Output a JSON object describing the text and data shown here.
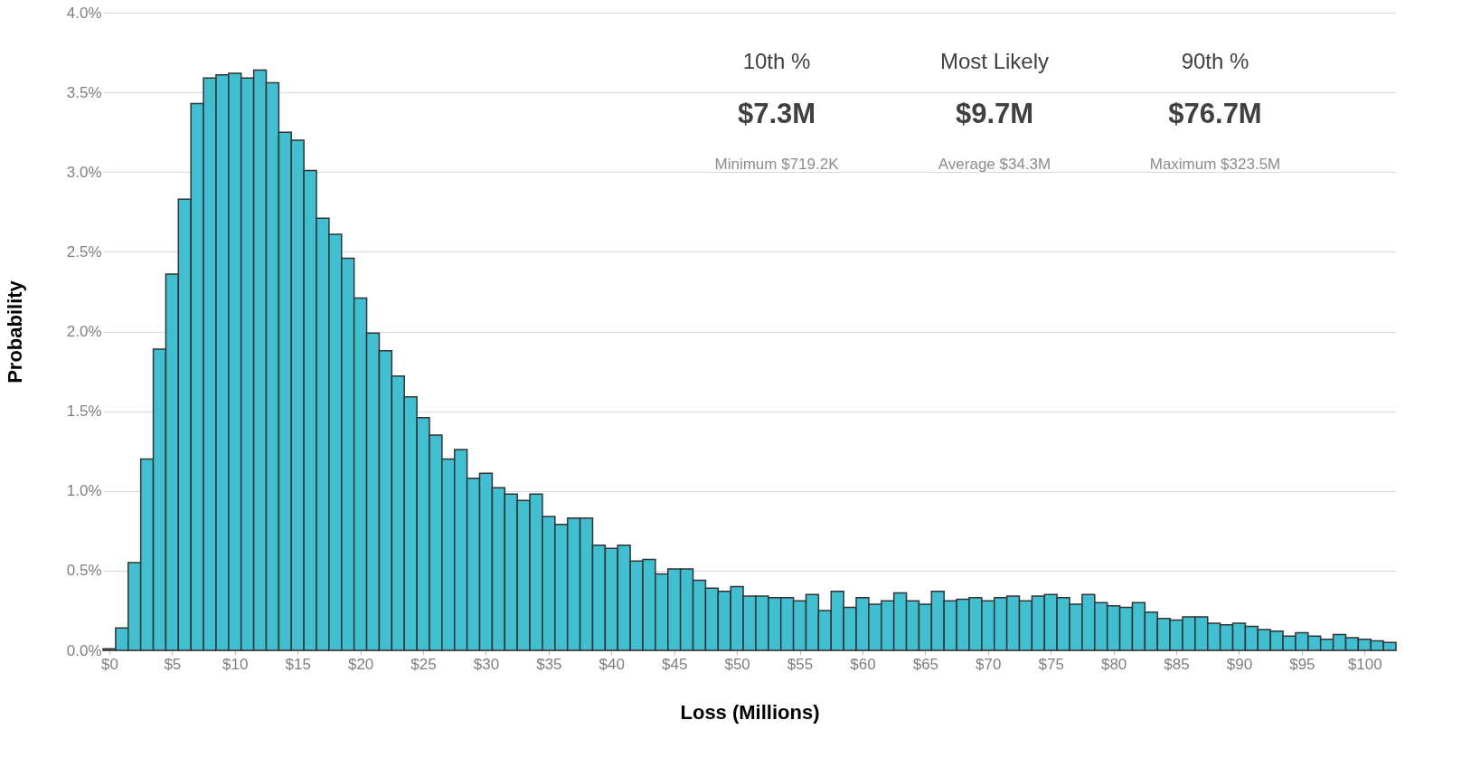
{
  "chart_data": {
    "type": "histogram",
    "xlabel": "Loss (Millions)",
    "ylabel": "Probability",
    "color": "#40bfd1",
    "bins": [
      -0.5,
      0.5,
      1.5,
      2.5,
      3.5,
      4.5,
      5.5,
      6.5,
      7.5,
      8.5,
      9.5,
      10.5,
      11.5,
      12.5,
      13.5,
      14.5,
      15.5,
      16.5,
      17.5,
      18.5,
      19.5,
      20.5,
      21.5,
      22.5,
      23.5,
      24.5,
      25.5,
      26.5,
      27.5,
      28.5,
      29.5,
      30.5,
      31.5,
      32.5,
      33.5,
      34.5,
      35.5,
      36.5,
      37.5,
      38.5,
      39.5,
      40.5,
      41.5,
      42.5,
      43.5,
      44.5,
      45.5,
      46.5,
      47.5,
      48.5,
      49.5,
      50.5,
      51.5,
      52.5,
      53.5,
      54.5,
      55.5,
      56.5,
      57.5,
      58.5,
      59.5,
      60.5,
      61.5,
      62.5,
      63.5,
      64.5,
      65.5,
      66.5,
      67.5,
      68.5,
      69.5,
      70.5,
      71.5,
      72.5,
      73.5,
      74.5,
      75.5,
      76.5,
      77.5,
      78.5,
      79.5,
      80.5,
      81.5,
      82.5,
      83.5,
      84.5,
      85.5,
      86.5,
      87.5,
      88.5,
      89.5,
      90.5,
      91.5,
      92.5,
      93.5,
      94.5,
      95.5,
      96.5,
      97.5,
      98.5,
      99.5,
      100.5,
      101.5,
      102.5
    ],
    "values": [
      0.01,
      0.14,
      0.55,
      1.2,
      1.89,
      2.36,
      2.83,
      3.43,
      3.59,
      3.61,
      3.62,
      3.59,
      3.64,
      3.56,
      3.25,
      3.2,
      3.01,
      2.71,
      2.61,
      2.46,
      2.21,
      1.99,
      1.88,
      1.72,
      1.59,
      1.46,
      1.35,
      1.2,
      1.26,
      1.08,
      1.11,
      1.02,
      0.98,
      0.94,
      0.98,
      0.84,
      0.79,
      0.83,
      0.83,
      0.66,
      0.64,
      0.66,
      0.56,
      0.57,
      0.48,
      0.51,
      0.51,
      0.44,
      0.39,
      0.37,
      0.4,
      0.34,
      0.34,
      0.33,
      0.33,
      0.31,
      0.35,
      0.25,
      0.37,
      0.27,
      0.33,
      0.29,
      0.31,
      0.36,
      0.31,
      0.29,
      0.37,
      0.31,
      0.32,
      0.33,
      0.31,
      0.33,
      0.34,
      0.31,
      0.34,
      0.35,
      0.33,
      0.29,
      0.35,
      0.3,
      0.28,
      0.27,
      0.3,
      0.24,
      0.2,
      0.19,
      0.21,
      0.21,
      0.17,
      0.16,
      0.17,
      0.15,
      0.13,
      0.12,
      0.09,
      0.11,
      0.09,
      0.07,
      0.1,
      0.08,
      0.07,
      0.06,
      0.05
    ],
    "xlim": [
      -0.5,
      102.5
    ],
    "xticks": [
      {
        "value": 0,
        "label": "$0"
      },
      {
        "value": 5,
        "label": "$5"
      },
      {
        "value": 10,
        "label": "$10"
      },
      {
        "value": 15,
        "label": "$15"
      },
      {
        "value": 20,
        "label": "$20"
      },
      {
        "value": 25,
        "label": "$25"
      },
      {
        "value": 30,
        "label": "$30"
      },
      {
        "value": 35,
        "label": "$35"
      },
      {
        "value": 40,
        "label": "$40"
      },
      {
        "value": 45,
        "label": "$45"
      },
      {
        "value": 50,
        "label": "$50"
      },
      {
        "value": 55,
        "label": "$55"
      },
      {
        "value": 60,
        "label": "$60"
      },
      {
        "value": 65,
        "label": "$65"
      },
      {
        "value": 70,
        "label": "$70"
      },
      {
        "value": 75,
        "label": "$75"
      },
      {
        "value": 80,
        "label": "$80"
      },
      {
        "value": 85,
        "label": "$85"
      },
      {
        "value": 90,
        "label": "$90"
      },
      {
        "value": 95,
        "label": "$95"
      },
      {
        "value": 100,
        "label": "$100"
      }
    ],
    "ylim": [
      0,
      4
    ],
    "yticks": [
      {
        "value": 0,
        "label": "0.0%"
      },
      {
        "value": 0.5,
        "label": "0.5%"
      },
      {
        "value": 1,
        "label": "1.0%"
      },
      {
        "value": 1.5,
        "label": "1.5%"
      },
      {
        "value": 2,
        "label": "2.0%"
      },
      {
        "value": 2.5,
        "label": "2.5%"
      },
      {
        "value": 3,
        "label": "3.0%"
      },
      {
        "value": 3.5,
        "label": "3.5%"
      },
      {
        "value": 4,
        "label": "4.0%"
      }
    ],
    "grid": "y",
    "annotations": [
      "10th %",
      "Most Likely",
      "90th %",
      "$7.3M",
      "$9.7M",
      "$76.7M",
      "Minimum $719.2K",
      "Average $34.3M",
      "Maximum $323.5M"
    ]
  }
}
